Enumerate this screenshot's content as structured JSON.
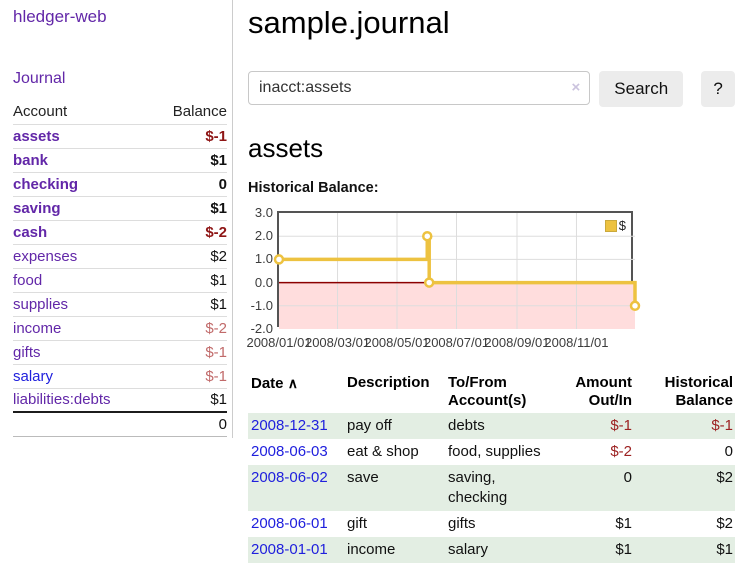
{
  "app": {
    "brand": "hledger-web",
    "nav_journal": "Journal"
  },
  "sidebar": {
    "headers": {
      "account": "Account",
      "balance": "Balance"
    },
    "accounts": [
      {
        "name": "assets",
        "balance": "$-1"
      },
      {
        "name": "bank",
        "balance": "$1"
      },
      {
        "name": "checking",
        "balance": "0"
      },
      {
        "name": "saving",
        "balance": "$1"
      },
      {
        "name": "cash",
        "balance": "$-2"
      },
      {
        "name": "expenses",
        "balance": "$2"
      },
      {
        "name": "food",
        "balance": "$1"
      },
      {
        "name": "supplies",
        "balance": "$1"
      },
      {
        "name": "income",
        "balance": "$-2"
      },
      {
        "name": "gifts",
        "balance": "$-1"
      },
      {
        "name": "salary",
        "balance": "$-1"
      },
      {
        "name": "liabilities:debts",
        "balance": "$1"
      }
    ],
    "total": "0"
  },
  "header": {
    "title": "sample.journal"
  },
  "search": {
    "value": "inacct:assets",
    "clear_icon": "×",
    "button_label": "Search",
    "help_label": "?"
  },
  "account_page": {
    "heading": "assets",
    "chart_label": "Historical Balance:"
  },
  "chart_data": {
    "type": "line",
    "step": true,
    "title": "Historical Balance:",
    "ylim": [
      -2,
      3
    ],
    "x_range": [
      "2008-01-01",
      "2008-12-31"
    ],
    "y_ticks": [
      3,
      2,
      1,
      0,
      -1,
      -2
    ],
    "x_ticks": [
      {
        "date": "2008-01-01",
        "label": "2008/01/01"
      },
      {
        "date": "2008-03-01",
        "label": "2008/03/01"
      },
      {
        "date": "2008-05-01",
        "label": "2008/05/01"
      },
      {
        "date": "2008-07-01",
        "label": "2008/07/01"
      },
      {
        "date": "2008-09-01",
        "label": "2008/09/01"
      },
      {
        "date": "2008-11-01",
        "label": "2008/11/01"
      }
    ],
    "series": [
      {
        "name": "$",
        "color": "#edc240",
        "points": [
          [
            "2008-01-01",
            1
          ],
          [
            "2008-06-01",
            2
          ],
          [
            "2008-06-03",
            0
          ],
          [
            "2008-12-31",
            -1
          ]
        ]
      }
    ],
    "grid_color": "#dddddd",
    "negative_region_color": "#ffdddd",
    "zero_line_color": "#8b0000",
    "legend_position": "top-right",
    "grid": true
  },
  "transactions": {
    "sort_icon": "∧",
    "headers": {
      "date": "Date",
      "description": "Description",
      "account": "To/From Account(s)",
      "amount": "Amount Out/In",
      "balance": "Historical Balance"
    },
    "rows": [
      {
        "date": "2008-12-31",
        "description": "pay off",
        "account": "debts",
        "amount": "$-1",
        "balance": "$-1"
      },
      {
        "date": "2008-06-03",
        "description": "eat & shop",
        "account": "food, supplies",
        "amount": "$-2",
        "balance": "0"
      },
      {
        "date": "2008-06-02",
        "description": "save",
        "account": "saving, checking",
        "amount": "0",
        "balance": "$2"
      },
      {
        "date": "2008-06-01",
        "description": "gift",
        "account": "gifts",
        "amount": "$1",
        "balance": "$2"
      },
      {
        "date": "2008-01-01",
        "description": "income",
        "account": "salary",
        "amount": "$1",
        "balance": "$1"
      }
    ]
  }
}
